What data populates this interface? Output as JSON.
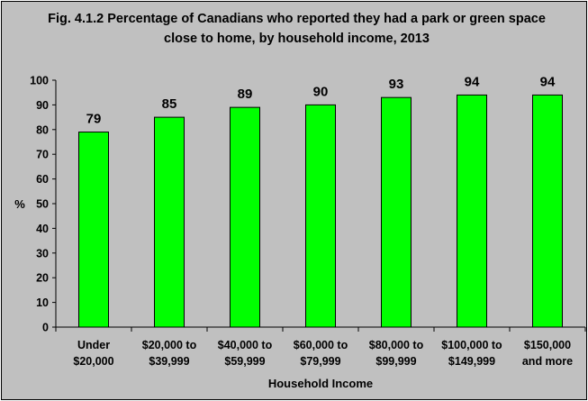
{
  "title": "Fig. 4.1.2 Percentage of Canadians who reported they had a park or green space close to home, by household income, 2013",
  "chart_data": {
    "type": "bar",
    "title": "Fig. 4.1.2 Percentage of Canadians who reported they had a park or green space close to home, by household income, 2013",
    "xlabel": "Household Income",
    "ylabel": "%",
    "ylim": [
      0,
      100
    ],
    "yticks": [
      0,
      10,
      20,
      30,
      40,
      50,
      60,
      70,
      80,
      90,
      100
    ],
    "grid": false,
    "legend": "none",
    "categories": [
      [
        "Under",
        "$20,000"
      ],
      [
        "$20,000 to",
        "$39,999"
      ],
      [
        "$40,000 to",
        "$59,999"
      ],
      [
        "$60,000 to",
        "$79,999"
      ],
      [
        "$80,000 to",
        "$99,999"
      ],
      [
        "$100,000 to",
        "$149,999"
      ],
      [
        "$150,000",
        "and more"
      ]
    ],
    "values": [
      79,
      85,
      89,
      90,
      93,
      94,
      94
    ],
    "bar_color": "#00ff00",
    "plot_background": "#c0c0c0"
  }
}
